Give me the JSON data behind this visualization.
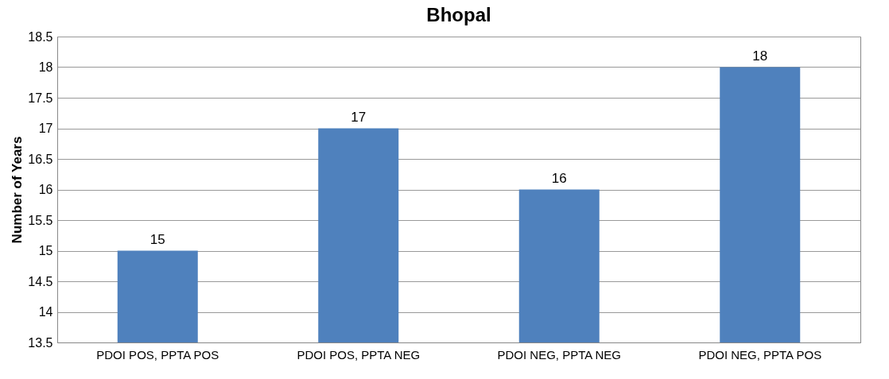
{
  "chart_data": {
    "type": "bar",
    "title": "Bhopal",
    "ylabel": "Number of Years",
    "categories": [
      "PDOI POS, PPTA POS",
      "PDOI POS, PPTA NEG",
      "PDOI NEG, PPTA NEG",
      "PDOI NEG, PPTA POS"
    ],
    "values": [
      15,
      17,
      16,
      18
    ],
    "color": "#4f81bd",
    "ylim": [
      13.5,
      18.5
    ],
    "yticks": [
      13.5,
      14,
      14.5,
      15,
      15.5,
      16,
      16.5,
      17,
      17.5,
      18,
      18.5
    ],
    "grid": "y",
    "data_labels": true
  }
}
